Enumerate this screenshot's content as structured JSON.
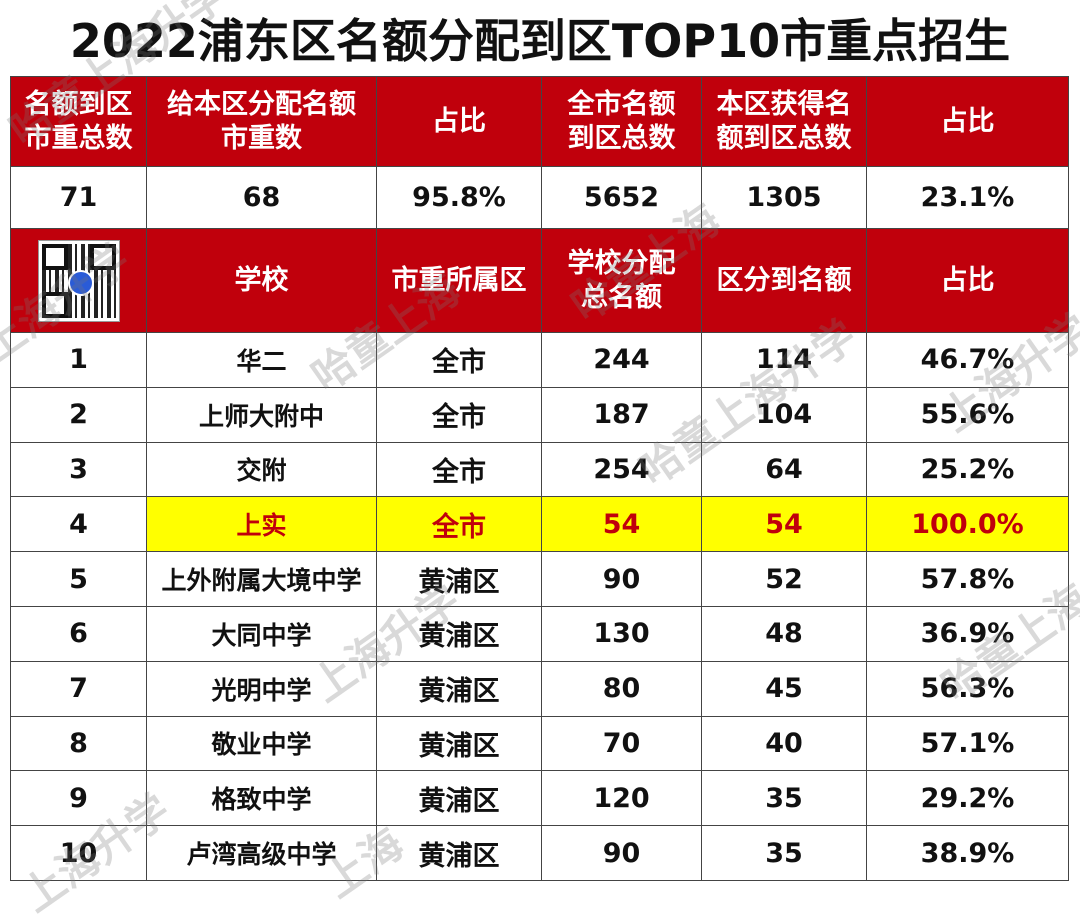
{
  "title": "2022浦东区名额分配到区TOP10市重点招生",
  "summary_headers": [
    "名额到区市重总数",
    "给本区分配名额市重数",
    "占比",
    "全市名额到区总数",
    "本区获得名额到区总数",
    "占比"
  ],
  "summary_headers_lines": [
    [
      "名额到区",
      "市重总数"
    ],
    [
      "给本区分配名额",
      "市重数"
    ],
    [
      "占比"
    ],
    [
      "全市名额",
      "到区总数"
    ],
    [
      "本区获得名",
      "额到区总数"
    ],
    [
      "占比"
    ]
  ],
  "summary_values": [
    "71",
    "68",
    "95.8%",
    "5652",
    "1305",
    "23.1%"
  ],
  "list_headers_lines": [
    [
      "学校"
    ],
    [
      "市重所属区"
    ],
    [
      "学校分配",
      "总名额"
    ],
    [
      "区分到名额"
    ],
    [
      "占比"
    ]
  ],
  "rows": [
    {
      "rank": "1",
      "school": "华二",
      "district": "全市",
      "total": "244",
      "allocated": "114",
      "ratio": "46.7%"
    },
    {
      "rank": "2",
      "school": "上师大附中",
      "district": "全市",
      "total": "187",
      "allocated": "104",
      "ratio": "55.6%"
    },
    {
      "rank": "3",
      "school": "交附",
      "district": "全市",
      "total": "254",
      "allocated": "64",
      "ratio": "25.2%"
    },
    {
      "rank": "4",
      "school": "上实",
      "district": "全市",
      "total": "54",
      "allocated": "54",
      "ratio": "100.0%"
    },
    {
      "rank": "5",
      "school": "上外附属大境中学",
      "district": "黄浦区",
      "total": "90",
      "allocated": "52",
      "ratio": "57.8%"
    },
    {
      "rank": "6",
      "school": "大同中学",
      "district": "黄浦区",
      "total": "130",
      "allocated": "48",
      "ratio": "36.9%"
    },
    {
      "rank": "7",
      "school": "光明中学",
      "district": "黄浦区",
      "total": "80",
      "allocated": "45",
      "ratio": "56.3%"
    },
    {
      "rank": "8",
      "school": "敬业中学",
      "district": "黄浦区",
      "total": "70",
      "allocated": "40",
      "ratio": "57.1%"
    },
    {
      "rank": "9",
      "school": "格致中学",
      "district": "黄浦区",
      "total": "120",
      "allocated": "35",
      "ratio": "29.2%"
    },
    {
      "rank": "10",
      "school": "卢湾高级中学",
      "district": "黄浦区",
      "total": "90",
      "allocated": "35",
      "ratio": "38.9%"
    }
  ],
  "highlight_rank": "4",
  "watermark_texts": [
    "哈童上海升学",
    "哈童上海",
    "上海升学",
    "上海升学",
    "哈童上海",
    "哈童上海升学",
    "上海升学",
    "哈童上海",
    "上海升学",
    "上海"
  ],
  "colors": {
    "header_bg": "#c0000c",
    "header_text": "#ffffff",
    "highlight_bg": "#ffff00",
    "highlight_text": "#c0000c"
  },
  "icons": {
    "qr": "qr-code-icon"
  }
}
